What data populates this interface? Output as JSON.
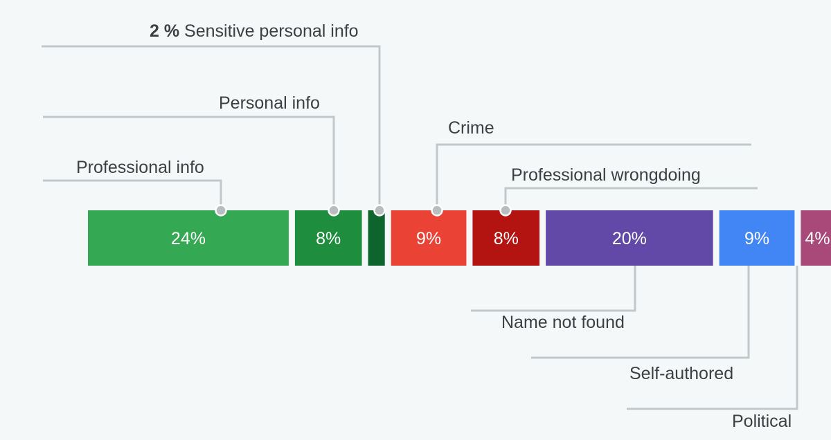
{
  "chart_data": {
    "type": "bar",
    "orientation": "horizontal-stacked-strip",
    "unit": "%",
    "categories": [
      "Professional info",
      "Personal info",
      "Sensitive personal info",
      "Crime",
      "Professional wrongdoing",
      "Name not found",
      "Self-authored",
      "Political"
    ],
    "values": [
      24,
      8,
      2,
      9,
      8,
      20,
      9,
      4
    ],
    "segment_labels": [
      "24%",
      "8%",
      "",
      "9%",
      "8%",
      "20%",
      "9%",
      "4%"
    ],
    "colors": [
      "#34a853",
      "#1e8e3e",
      "#0d652d",
      "#ea4335",
      "#b31412",
      "#6249a8",
      "#4285f4",
      "#a8497a"
    ],
    "label_positions": [
      "above",
      "above",
      "above",
      "above",
      "above",
      "below",
      "below",
      "below"
    ],
    "inline_prefix": {
      "Sensitive personal info": "2 %"
    }
  }
}
